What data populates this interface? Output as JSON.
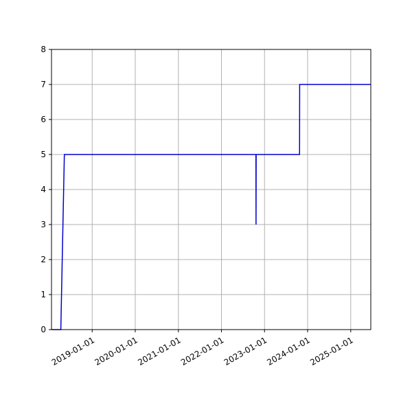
{
  "chart_data": {
    "type": "line",
    "title": "",
    "xlabel": "",
    "ylabel": "",
    "x_axis_type": "date",
    "xlim": [
      "2018-01-21",
      "2025-06-20"
    ],
    "ylim": [
      0,
      8
    ],
    "grid": true,
    "legend": "none",
    "x_ticks": [
      "2019-01-01",
      "2020-01-01",
      "2021-01-01",
      "2022-01-01",
      "2023-01-01",
      "2024-01-01",
      "2025-01-01"
    ],
    "y_ticks": [
      0,
      1,
      2,
      3,
      4,
      5,
      6,
      7,
      8
    ],
    "series": [
      {
        "color": "#0000cc",
        "points": [
          {
            "x": "2018-01-21",
            "y": 0
          },
          {
            "x": "2018-04-10",
            "y": 0
          },
          {
            "x": "2018-05-10",
            "y": 5
          },
          {
            "x": "2022-10-20",
            "y": 5
          },
          {
            "x": "2022-10-21",
            "y": 3
          },
          {
            "x": "2022-10-22",
            "y": 5
          },
          {
            "x": "2023-10-25",
            "y": 5
          },
          {
            "x": "2023-10-26",
            "y": 7
          },
          {
            "x": "2025-06-20",
            "y": 7
          }
        ]
      }
    ]
  }
}
